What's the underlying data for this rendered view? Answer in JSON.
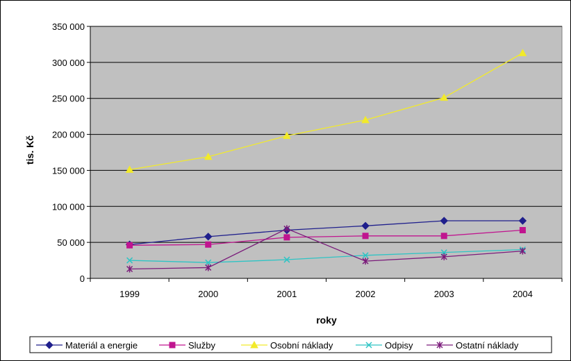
{
  "chart_data": {
    "type": "line",
    "title": "",
    "xlabel": "roky",
    "ylabel": "tis. Kč",
    "categories": [
      "1999",
      "2000",
      "2001",
      "2002",
      "2003",
      "2004"
    ],
    "ylim": [
      0,
      350000
    ],
    "yticks": [
      0,
      50000,
      100000,
      150000,
      200000,
      250000,
      300000,
      350000
    ],
    "ytick_labels": [
      "0",
      "50 000",
      "100 000",
      "150 000",
      "200 000",
      "250 000",
      "300 000",
      "350 000"
    ],
    "grid": "horizontal",
    "plot_background": "#c0c0c0",
    "legend_position": "bottom",
    "series": [
      {
        "name": "Materiál a energie",
        "color": "#1f1f8c",
        "marker": "diamond",
        "values": [
          47000,
          58000,
          67000,
          73000,
          80000,
          80000
        ]
      },
      {
        "name": "Služby",
        "color": "#c0158f",
        "marker": "square",
        "values": [
          46000,
          47000,
          57000,
          59000,
          59000,
          67000
        ]
      },
      {
        "name": "Osobní náklady",
        "color": "#f2ea2a",
        "marker": "triangle",
        "values": [
          151000,
          169000,
          198000,
          220000,
          251000,
          313000
        ]
      },
      {
        "name": "Odpisy",
        "color": "#2ec4c4",
        "marker": "x",
        "values": [
          25000,
          22000,
          26000,
          32000,
          36000,
          40000
        ]
      },
      {
        "name": "Ostatní náklady",
        "color": "#7a1a7a",
        "marker": "star",
        "values": [
          13000,
          15000,
          69000,
          24000,
          30000,
          38000
        ]
      }
    ]
  }
}
